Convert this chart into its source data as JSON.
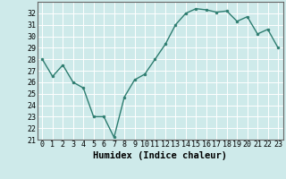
{
  "x": [
    0,
    1,
    2,
    3,
    4,
    5,
    6,
    7,
    8,
    9,
    10,
    11,
    12,
    13,
    14,
    15,
    16,
    17,
    18,
    19,
    20,
    21,
    22,
    23
  ],
  "y": [
    28.0,
    26.5,
    27.5,
    26.0,
    25.5,
    23.0,
    23.0,
    21.2,
    24.7,
    26.2,
    26.7,
    28.0,
    29.3,
    31.0,
    32.0,
    32.4,
    32.3,
    32.1,
    32.2,
    31.3,
    31.7,
    30.2,
    30.6,
    29.0
  ],
  "line_color": "#2e7d70",
  "marker": "o",
  "marker_size": 2.0,
  "bg_color": "#ceeaea",
  "grid_color": "#ffffff",
  "xlabel": "Humidex (Indice chaleur)",
  "xlim": [
    -0.5,
    23.5
  ],
  "ylim": [
    21,
    33
  ],
  "yticks": [
    21,
    22,
    23,
    24,
    25,
    26,
    27,
    28,
    29,
    30,
    31,
    32
  ],
  "xticks": [
    0,
    1,
    2,
    3,
    4,
    5,
    6,
    7,
    8,
    9,
    10,
    11,
    12,
    13,
    14,
    15,
    16,
    17,
    18,
    19,
    20,
    21,
    22,
    23
  ],
  "tick_fontsize": 6.0,
  "xlabel_fontsize": 7.5,
  "line_width": 1.0
}
